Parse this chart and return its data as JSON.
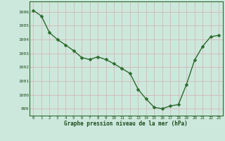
{
  "x": [
    0,
    1,
    2,
    3,
    4,
    5,
    6,
    7,
    8,
    9,
    10,
    11,
    12,
    13,
    14,
    15,
    16,
    17,
    18,
    19,
    20,
    21,
    22,
    23
  ],
  "y": [
    1006.1,
    1005.7,
    1004.5,
    1004.0,
    1003.6,
    1003.2,
    1002.7,
    1002.55,
    1002.75,
    1002.55,
    1002.25,
    1001.9,
    1001.55,
    1000.4,
    999.7,
    999.1,
    999.0,
    999.2,
    999.3,
    1000.75,
    1002.5,
    1003.5,
    1004.2,
    1004.3
  ],
  "line_color": "#2d6a2d",
  "marker_color": "#2d6a2d",
  "bg_color": "#cce8dc",
  "grid_color": "#d4b8b8",
  "xlabel": "Graphe pression niveau de la mer (hPa)",
  "xlabel_color": "#1a4a1a",
  "tick_color": "#1a4a1a",
  "ylim": [
    998.5,
    1006.75
  ],
  "xlim": [
    -0.5,
    23.5
  ],
  "yticks": [
    999,
    1000,
    1001,
    1002,
    1003,
    1004,
    1005,
    1006
  ],
  "xticks": [
    0,
    1,
    2,
    3,
    4,
    5,
    6,
    7,
    8,
    9,
    10,
    11,
    12,
    13,
    14,
    15,
    16,
    17,
    18,
    19,
    20,
    21,
    22,
    23
  ],
  "xtick_labels": [
    "0",
    "1",
    "2",
    "3",
    "4",
    "5",
    "6",
    "7",
    "8",
    "9",
    "10",
    "11",
    "12",
    "13",
    "14",
    "15",
    "16",
    "17",
    "18",
    "19",
    "20",
    "21",
    "22",
    "23"
  ],
  "ytick_labels": [
    "999",
    "1000",
    "1001",
    "1002",
    "1003",
    "1004",
    "1005",
    "1006"
  ],
  "marker_size": 2.5,
  "line_width": 1.0,
  "spine_color": "#2d6a2d",
  "font_family": "monospace"
}
